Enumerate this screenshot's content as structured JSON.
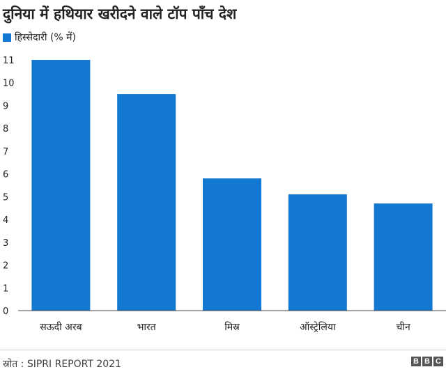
{
  "title": "दुनिया में हथियार खरीदने वाले टॉप पाँच देश",
  "legend": {
    "label": "हिस्सेदारी (% में)",
    "color": "#1378d1"
  },
  "source": "स्रोत : SIPRI REPORT 2021",
  "logo": [
    "B",
    "B",
    "C"
  ],
  "chart_data": {
    "type": "bar",
    "categories": [
      "सऊदी अरब",
      "भारत",
      "मिस्र",
      "ऑस्ट्रेलिया",
      "चीन"
    ],
    "series": [
      {
        "name": "हिस्सेदारी (% में)",
        "values": [
          11,
          9.5,
          5.8,
          5.1,
          4.7
        ]
      }
    ],
    "yticks": [
      "0",
      "1",
      "2",
      "3",
      "4",
      "5",
      "6",
      "7",
      "8",
      "9",
      "10",
      "11"
    ],
    "ylim": [
      0,
      11
    ],
    "grid": false,
    "bar_color": "#1378d1",
    "legend_position": "top-left"
  }
}
